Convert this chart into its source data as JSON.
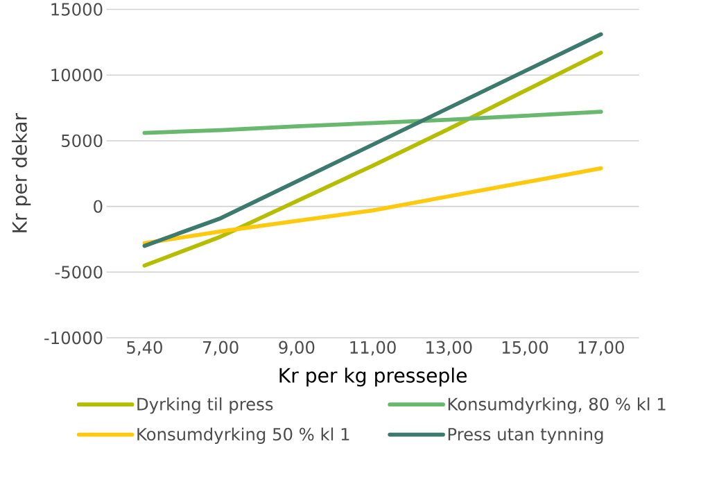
{
  "chart_data": {
    "type": "line",
    "xlabel": "Kr per kg presseple",
    "ylabel": "Kr per dekar",
    "categories": [
      "5,40",
      "7,00",
      "9,00",
      "11,00",
      "13,00",
      "15,00",
      "17,00"
    ],
    "series": [
      {
        "name": "Dyrking til press",
        "color": "#b5bd00",
        "values": [
          -4500,
          -2300,
          400,
          3100,
          5900,
          8800,
          11700
        ]
      },
      {
        "name": "Konsumdyrking, 80 % kl 1",
        "color": "#6ab86f",
        "values": [
          5600,
          5800,
          6100,
          6350,
          6600,
          6900,
          7200
        ]
      },
      {
        "name": "Konsumdyrking 50 % kl 1",
        "color": "#ffc90e",
        "values": [
          -2800,
          -1900,
          -1100,
          -300,
          770,
          1830,
          2900
        ]
      },
      {
        "name": "Press utan tynning",
        "color": "#3d7a6e",
        "values": [
          -3000,
          -900,
          1900,
          4700,
          7500,
          10300,
          13100
        ]
      }
    ],
    "ylim": [
      -10000,
      15000
    ],
    "yticks": [
      -10000,
      -5000,
      0,
      5000,
      10000,
      15000
    ],
    "grid": "y",
    "legend": "bottom",
    "marker": "none",
    "line_style": "solid"
  }
}
